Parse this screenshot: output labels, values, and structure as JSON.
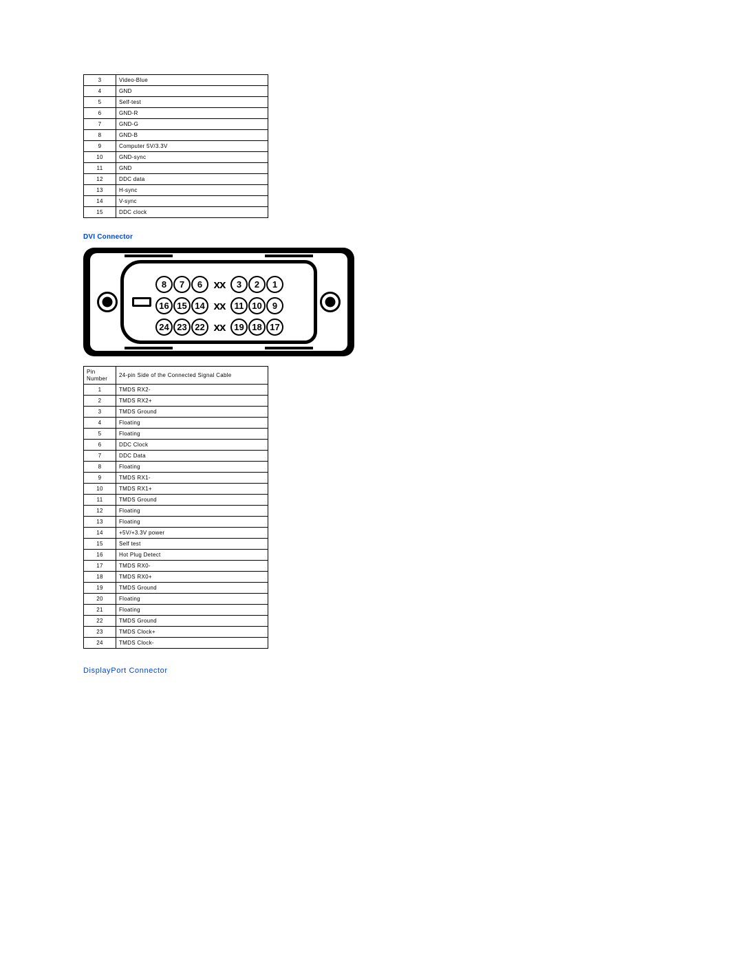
{
  "table1": {
    "rows": [
      [
        "3",
        "Video-Blue"
      ],
      [
        "4",
        "GND"
      ],
      [
        "5",
        "Self-test"
      ],
      [
        "6",
        "GND-R"
      ],
      [
        "7",
        "GND-G"
      ],
      [
        "8",
        "GND-B"
      ],
      [
        "9",
        "Computer 5V/3.3V"
      ],
      [
        "10",
        "GND-sync"
      ],
      [
        "11",
        "GND"
      ],
      [
        "12",
        "DDC data"
      ],
      [
        "13",
        "H-sync"
      ],
      [
        "14",
        "V-sync"
      ],
      [
        "15",
        "DDC clock"
      ]
    ]
  },
  "dvi_heading": "DVI Connector",
  "dvi_diagram": {
    "rows": [
      {
        "left": [
          "8",
          "7",
          "6"
        ],
        "right": [
          "3",
          "2",
          "1"
        ]
      },
      {
        "left": [
          "16",
          "15",
          "14"
        ],
        "right": [
          "11",
          "10",
          "9"
        ]
      },
      {
        "left": [
          "24",
          "23",
          "22"
        ],
        "right": [
          "19",
          "18",
          "17"
        ]
      }
    ],
    "gap_label": "xx"
  },
  "table2": {
    "header": [
      "Pin Number",
      "24-pin Side of the Connected Signal Cable"
    ],
    "rows": [
      [
        "1",
        "TMDS RX2-"
      ],
      [
        "2",
        "TMDS RX2+"
      ],
      [
        "3",
        "TMDS Ground"
      ],
      [
        "4",
        "Floating"
      ],
      [
        "5",
        "Floating"
      ],
      [
        "6",
        "DDC Clock"
      ],
      [
        "7",
        "DDC Data"
      ],
      [
        "8",
        "Floating"
      ],
      [
        "9",
        "TMDS RX1-"
      ],
      [
        "10",
        "TMDS RX1+"
      ],
      [
        "11",
        "TMDS Ground"
      ],
      [
        "12",
        "Floating"
      ],
      [
        "13",
        "Floating"
      ],
      [
        "14",
        "+5V/+3.3V power"
      ],
      [
        "15",
        "Self test"
      ],
      [
        "16",
        "Hot Plug Detect"
      ],
      [
        "17",
        "TMDS RX0-"
      ],
      [
        "18",
        "TMDS RX0+"
      ],
      [
        "19",
        "TMDS Ground"
      ],
      [
        "20",
        "Floating"
      ],
      [
        "21",
        "Floating"
      ],
      [
        "22",
        "TMDS Ground"
      ],
      [
        "23",
        "TMDS Clock+"
      ],
      [
        "24",
        "TMDS Clock-"
      ]
    ]
  },
  "dp_heading": "DisplayPort Connector"
}
